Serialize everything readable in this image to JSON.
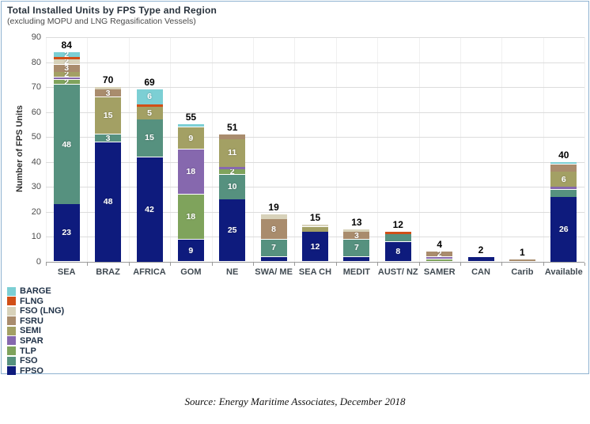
{
  "source_note": "Source: Energy Maritime Associates, December 2018",
  "chart_data": {
    "type": "bar",
    "variant": "stacked",
    "title": "Total Installed Units by FPS Type and Region",
    "subtitle": "(excluding MOPU and LNG Regasification Vessels)",
    "ylabel": "Number of FPS Units",
    "ylim": [
      0,
      90
    ],
    "ytick_step": 10,
    "grid": "horizontal",
    "legend_position": "bottom-left",
    "legend_order": [
      "BARGE",
      "FLNG",
      "FSO (LNG)",
      "FSRU",
      "SEMI",
      "SPAR",
      "TLP",
      "FSO",
      "FPSO"
    ],
    "colors": {
      "FPSO": "#0e1b7d",
      "FSO": "#56917f",
      "TLP": "#7fa35c",
      "SPAR": "#8668ae",
      "SEMI": "#a3a064",
      "FSRU": "#a98c6d",
      "FSO (LNG)": "#d8d2ba",
      "FLNG": "#d14f17",
      "BARGE": "#7ccfd4"
    },
    "categories": [
      "SEA",
      "BRAZ",
      "AFRICA",
      "GOM",
      "NE",
      "SWA/ ME",
      "SEA CH",
      "MEDIT",
      "AUST/ NZ",
      "SAMER",
      "CAN",
      "Carib",
      "Available"
    ],
    "bars": [
      {
        "category": "SEA",
        "total": 84,
        "segments": [
          {
            "type": "FPSO",
            "value": 23,
            "label": true
          },
          {
            "type": "FSO",
            "value": 48,
            "label": true
          },
          {
            "type": "TLP",
            "value": 2,
            "label": true
          },
          {
            "type": "SPAR",
            "value": 1,
            "label": false
          },
          {
            "type": "SEMI",
            "value": 2,
            "label": true
          },
          {
            "type": "FSRU",
            "value": 3,
            "label": true
          },
          {
            "type": "FSO (LNG)",
            "value": 2,
            "label": true
          },
          {
            "type": "FLNG",
            "value": 1,
            "label": false
          },
          {
            "type": "BARGE",
            "value": 2,
            "label": true
          }
        ]
      },
      {
        "category": "BRAZ",
        "total": 70,
        "segments": [
          {
            "type": "FPSO",
            "value": 48,
            "label": true
          },
          {
            "type": "FSO",
            "value": 3,
            "label": true
          },
          {
            "type": "SEMI",
            "value": 15,
            "label": true
          },
          {
            "type": "FSRU",
            "value": 3,
            "label": true
          },
          {
            "type": "FSO (LNG)",
            "value": 1,
            "label": false
          }
        ]
      },
      {
        "category": "AFRICA",
        "total": 69,
        "segments": [
          {
            "type": "FPSO",
            "value": 42,
            "label": true
          },
          {
            "type": "FSO",
            "value": 15,
            "label": true
          },
          {
            "type": "SEMI",
            "value": 5,
            "label": true
          },
          {
            "type": "FLNG",
            "value": 1,
            "label": false
          },
          {
            "type": "BARGE",
            "value": 6,
            "label": true
          }
        ]
      },
      {
        "category": "GOM",
        "total": 55,
        "segments": [
          {
            "type": "FPSO",
            "value": 9,
            "label": true
          },
          {
            "type": "TLP",
            "value": 18,
            "label": true
          },
          {
            "type": "SPAR",
            "value": 18,
            "label": true
          },
          {
            "type": "SEMI",
            "value": 9,
            "label": true
          },
          {
            "type": "BARGE",
            "value": 1,
            "label": false
          }
        ]
      },
      {
        "category": "NE",
        "total": 51,
        "segments": [
          {
            "type": "FPSO",
            "value": 25,
            "label": true
          },
          {
            "type": "FSO",
            "value": 10,
            "label": true
          },
          {
            "type": "TLP",
            "value": 2,
            "label": true
          },
          {
            "type": "SPAR",
            "value": 1,
            "label": false
          },
          {
            "type": "SEMI",
            "value": 11,
            "label": true
          },
          {
            "type": "FSRU",
            "value": 2,
            "label": false
          }
        ]
      },
      {
        "category": "SWA/ ME",
        "total": 19,
        "segments": [
          {
            "type": "FPSO",
            "value": 2,
            "label": false
          },
          {
            "type": "FSO",
            "value": 7,
            "label": true
          },
          {
            "type": "FSRU",
            "value": 8,
            "label": true
          },
          {
            "type": "FSO (LNG)",
            "value": 2,
            "label": false
          }
        ]
      },
      {
        "category": "SEA CH",
        "total": 15,
        "segments": [
          {
            "type": "FPSO",
            "value": 12,
            "label": true
          },
          {
            "type": "SEMI",
            "value": 2,
            "label": false
          },
          {
            "type": "FSO (LNG)",
            "value": 1,
            "label": false
          }
        ]
      },
      {
        "category": "MEDIT",
        "total": 13,
        "segments": [
          {
            "type": "FPSO",
            "value": 2,
            "label": false
          },
          {
            "type": "FSO",
            "value": 7,
            "label": true
          },
          {
            "type": "FSRU",
            "value": 3,
            "label": true
          },
          {
            "type": "FSO (LNG)",
            "value": 1,
            "label": false
          }
        ]
      },
      {
        "category": "AUST/ NZ",
        "total": 12,
        "segments": [
          {
            "type": "FPSO",
            "value": 8,
            "label": true
          },
          {
            "type": "FSO",
            "value": 3,
            "label": false
          },
          {
            "type": "FLNG",
            "value": 1,
            "label": false
          }
        ]
      },
      {
        "category": "SAMER",
        "total": 4,
        "segments": [
          {
            "type": "TLP",
            "value": 1,
            "label": false
          },
          {
            "type": "SPAR",
            "value": 1,
            "label": false
          },
          {
            "type": "FSRU",
            "value": 2,
            "label": true
          }
        ]
      },
      {
        "category": "CAN",
        "total": 2,
        "segments": [
          {
            "type": "FPSO",
            "value": 2,
            "label": false
          }
        ]
      },
      {
        "category": "Carib",
        "total": 1,
        "segments": [
          {
            "type": "FSRU",
            "value": 1,
            "label": false
          }
        ]
      },
      {
        "category": "Available",
        "total": 40,
        "segments": [
          {
            "type": "FPSO",
            "value": 26,
            "label": true
          },
          {
            "type": "FSO",
            "value": 3,
            "label": false
          },
          {
            "type": "SPAR",
            "value": 1,
            "label": false
          },
          {
            "type": "SEMI",
            "value": 6,
            "label": true
          },
          {
            "type": "FSRU",
            "value": 3,
            "label": false
          },
          {
            "type": "BARGE",
            "value": 1,
            "label": false
          }
        ]
      }
    ]
  }
}
